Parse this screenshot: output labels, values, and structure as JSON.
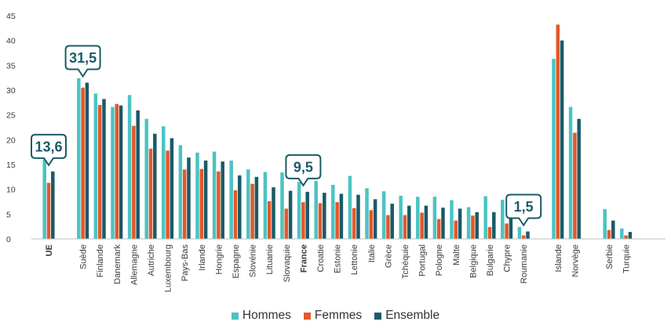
{
  "colors": {
    "hommes": "#4bc3c3",
    "femmes": "#e3582a",
    "ensemble": "#1b5a68",
    "callout_border": "#1b5a68",
    "callout_text": "#1b5a68",
    "axis": "#bfbfbf",
    "text": "#3a3a3a"
  },
  "chart_data": {
    "type": "bar",
    "title": "",
    "xlabel": "",
    "ylabel": "",
    "ylim": [
      0,
      45
    ],
    "yticks": [
      0,
      5,
      10,
      15,
      20,
      25,
      30,
      35,
      40,
      45
    ],
    "grid": false,
    "legend_position": "bottom-center",
    "groups": [
      [
        "UE"
      ],
      [
        "Suède",
        "Finlande",
        "Danemark",
        "Allemagne",
        "Autriche",
        "Luxembourg",
        "Pays-Bas",
        "Irlande",
        "Hongrie",
        "Espagne",
        "Slovénie",
        "Lituanie",
        "Slovaquie",
        "France",
        "Croatie",
        "Estonie",
        "Lettonie",
        "Italie",
        "Grèce",
        "Tchéquie",
        "Portugal",
        "Pologne",
        "Malte",
        "Belgique",
        "Bulgarie",
        "Chypre",
        "Roumanie"
      ],
      [
        "Islande",
        "Norvège"
      ],
      [
        "Serbie",
        "Turquie"
      ]
    ],
    "categories": [
      "UE",
      "Suède",
      "Finlande",
      "Danemark",
      "Allemagne",
      "Autriche",
      "Luxembourg",
      "Pays-Bas",
      "Irlande",
      "Hongrie",
      "Espagne",
      "Slovénie",
      "Lituanie",
      "Slovaquie",
      "France",
      "Croatie",
      "Estonie",
      "Lettonie",
      "Italie",
      "Grèce",
      "Tchéquie",
      "Portugal",
      "Pologne",
      "Malte",
      "Belgique",
      "Bulgarie",
      "Chypre",
      "Roumanie",
      "Islande",
      "Norvège",
      "Serbie",
      "Turquie"
    ],
    "bold_categories": [
      "UE",
      "France"
    ],
    "series": [
      {
        "name": "Hommes",
        "values": [
          16.0,
          32.4,
          29.3,
          26.6,
          29.0,
          24.2,
          22.7,
          18.9,
          17.4,
          17.6,
          15.8,
          14.0,
          13.5,
          13.4,
          11.5,
          11.7,
          10.9,
          12.7,
          10.2,
          9.6,
          8.7,
          8.5,
          8.5,
          7.8,
          6.4,
          8.6,
          7.9,
          2.4,
          36.3,
          26.6,
          6.0,
          2.1
        ]
      },
      {
        "name": "Femmes",
        "values": [
          11.3,
          30.5,
          27.0,
          27.2,
          22.8,
          18.2,
          17.8,
          14.0,
          14.1,
          13.6,
          9.8,
          11.1,
          7.6,
          6.1,
          7.4,
          7.2,
          7.4,
          6.2,
          5.8,
          4.8,
          4.8,
          5.3,
          4.0,
          3.7,
          4.7,
          2.4,
          3.1,
          0.7,
          43.2,
          21.4,
          1.8,
          0.7
        ]
      },
      {
        "name": "Ensemble",
        "values": [
          13.6,
          31.5,
          28.2,
          26.9,
          25.9,
          21.2,
          20.3,
          16.4,
          15.8,
          15.6,
          12.8,
          12.5,
          10.4,
          9.7,
          9.5,
          9.3,
          9.1,
          8.9,
          8.0,
          7.1,
          6.7,
          6.7,
          6.3,
          6.1,
          5.4,
          5.4,
          5.4,
          1.5,
          40.0,
          24.2,
          3.7,
          1.4
        ]
      }
    ],
    "annotations": [
      {
        "category": "UE",
        "series": "Ensemble",
        "value": 13.6,
        "text": "13,6"
      },
      {
        "category": "Suède",
        "series": "Ensemble",
        "value": 31.5,
        "text": "31,5"
      },
      {
        "category": "France",
        "series": "Ensemble",
        "value": 9.5,
        "text": "9,5"
      },
      {
        "category": "Roumanie",
        "series": "Ensemble",
        "value": 1.5,
        "text": "1,5"
      }
    ]
  }
}
